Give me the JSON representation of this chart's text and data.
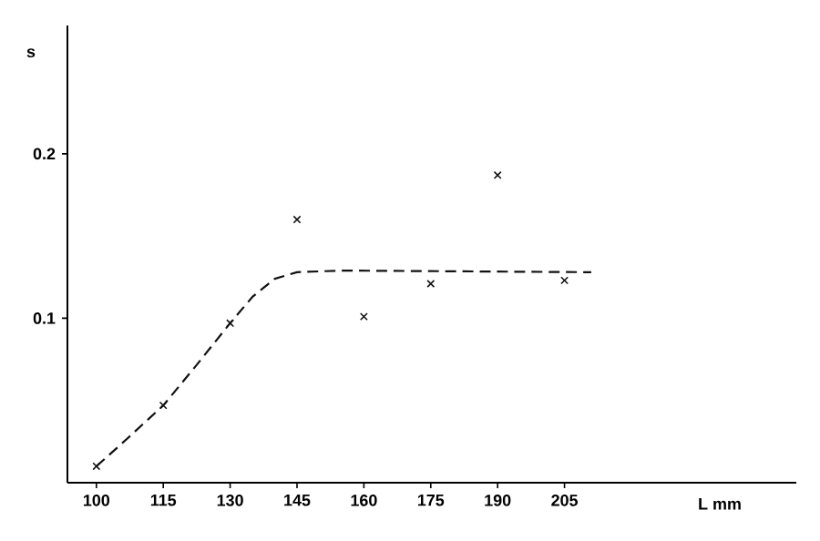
{
  "chart_data": {
    "type": "scatter",
    "xlabel": "L mm",
    "ylabel": "s",
    "xlim": [
      93.5,
      257
    ],
    "xticks": [
      100,
      115,
      130,
      145,
      160,
      175,
      190,
      205
    ],
    "ylim": [
      0,
      0.278
    ],
    "yticks": [
      0.1,
      0.2
    ],
    "marker": "cross",
    "grid": false,
    "series": [
      {
        "color": "#111111",
        "x": [
          100,
          115,
          130,
          145,
          160,
          175,
          190,
          205
        ],
        "values": [
          0.01,
          0.047,
          0.097,
          0.16,
          0.101,
          0.121,
          0.187,
          0.123
        ]
      },
      {
        "type": "line",
        "color": "#111111",
        "marker": "none",
        "line_style": "dashed",
        "x": [
          100,
          107,
          115,
          122,
          130,
          135,
          140,
          145,
          155,
          211
        ],
        "values": [
          0.01,
          0.027,
          0.047,
          0.07,
          0.097,
          0.113,
          0.124,
          0.128,
          0.129,
          0.128
        ]
      }
    ]
  }
}
